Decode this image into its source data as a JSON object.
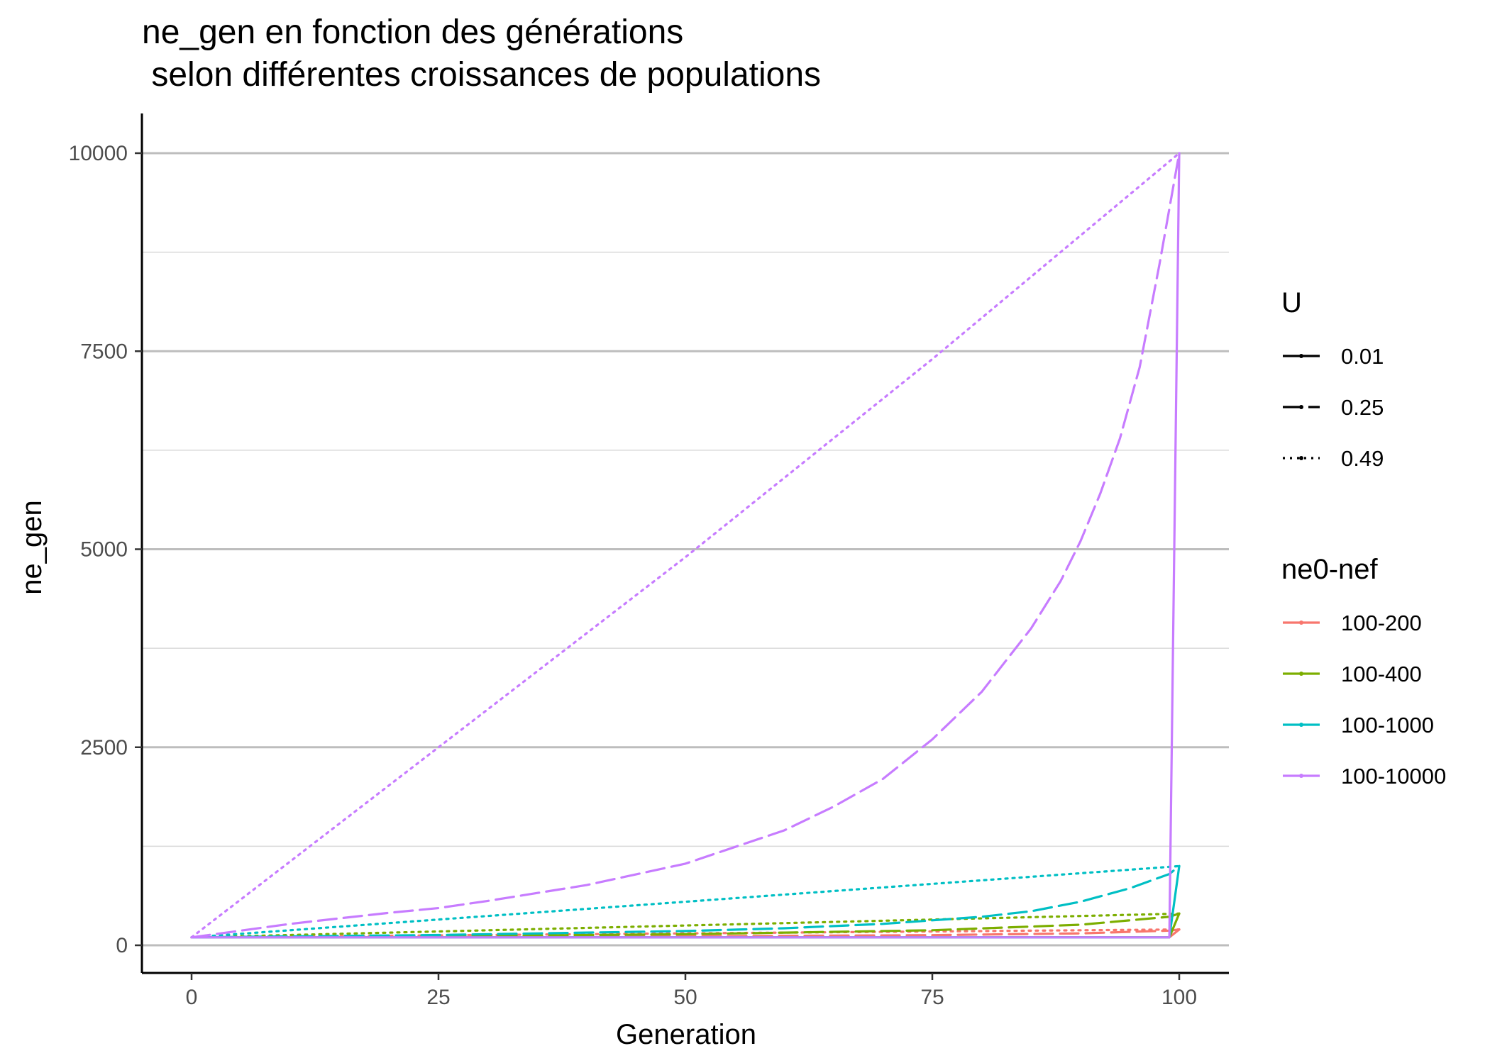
{
  "chart_data": {
    "type": "line",
    "title_line1": "ne_gen en fonction des générations",
    "title_line2": " selon différentes croissances de populations",
    "xlabel": "Generation",
    "ylabel": "ne_gen",
    "xlim": [
      -10,
      105
    ],
    "ylim": [
      -800,
      10450
    ],
    "xticks": [
      0,
      25,
      50,
      75,
      100
    ],
    "yticks": [
      0,
      2500,
      5000,
      7500,
      10000
    ],
    "grid": "major and minor horizontal",
    "legend_position": "right",
    "legend": {
      "U": {
        "title": "U",
        "entries": [
          {
            "label": "0.01",
            "linetype": "solid"
          },
          {
            "label": "0.25",
            "linetype": "dashed"
          },
          {
            "label": "0.49",
            "linetype": "dotted"
          }
        ]
      },
      "nef": {
        "title": "ne0-nef",
        "entries": [
          {
            "label": "100-200",
            "color": "#F8766D"
          },
          {
            "label": "100-400",
            "color": "#7CAE00"
          },
          {
            "label": "100-1000",
            "color": "#00BFC4"
          },
          {
            "label": "100-10000",
            "color": "#C77CFF"
          }
        ]
      }
    },
    "series": [
      {
        "name": "100-200",
        "U": "0.01",
        "color": "#F8766D",
        "dash": "solid",
        "points": [
          [
            0,
            100
          ],
          [
            99,
            100
          ],
          [
            100,
            200
          ]
        ]
      },
      {
        "name": "100-200",
        "U": "0.25",
        "color": "#F8766D",
        "dash": "dashed",
        "points": [
          [
            0,
            100
          ],
          [
            25,
            105
          ],
          [
            50,
            113
          ],
          [
            75,
            128
          ],
          [
            90,
            150
          ],
          [
            99,
            185
          ],
          [
            100,
            200
          ]
        ]
      },
      {
        "name": "100-200",
        "U": "0.49",
        "color": "#F8766D",
        "dash": "dotted",
        "points": [
          [
            0,
            100
          ],
          [
            25,
            125
          ],
          [
            50,
            150
          ],
          [
            75,
            175
          ],
          [
            99,
            199
          ],
          [
            100,
            200
          ]
        ]
      },
      {
        "name": "100-400",
        "U": "0.01",
        "color": "#7CAE00",
        "dash": "solid",
        "points": [
          [
            0,
            100
          ],
          [
            99,
            100
          ],
          [
            100,
            400
          ]
        ]
      },
      {
        "name": "100-400",
        "U": "0.25",
        "color": "#7CAE00",
        "dash": "dashed",
        "points": [
          [
            0,
            100
          ],
          [
            25,
            115
          ],
          [
            50,
            140
          ],
          [
            75,
            190
          ],
          [
            90,
            260
          ],
          [
            99,
            360
          ],
          [
            100,
            400
          ]
        ]
      },
      {
        "name": "100-400",
        "U": "0.49",
        "color": "#7CAE00",
        "dash": "dotted",
        "points": [
          [
            0,
            100
          ],
          [
            25,
            175
          ],
          [
            50,
            250
          ],
          [
            75,
            325
          ],
          [
            99,
            397
          ],
          [
            100,
            400
          ]
        ]
      },
      {
        "name": "100-1000",
        "U": "0.01",
        "color": "#00BFC4",
        "dash": "solid",
        "points": [
          [
            0,
            100
          ],
          [
            99,
            100
          ],
          [
            100,
            1000
          ]
        ]
      },
      {
        "name": "100-1000",
        "U": "0.25",
        "color": "#00BFC4",
        "dash": "dashed",
        "points": [
          [
            0,
            100
          ],
          [
            25,
            130
          ],
          [
            50,
            180
          ],
          [
            60,
            215
          ],
          [
            70,
            270
          ],
          [
            80,
            360
          ],
          [
            85,
            430
          ],
          [
            90,
            550
          ],
          [
            95,
            720
          ],
          [
            99,
            900
          ],
          [
            100,
            1000
          ]
        ]
      },
      {
        "name": "100-1000",
        "U": "0.49",
        "color": "#00BFC4",
        "dash": "dotted",
        "points": [
          [
            0,
            100
          ],
          [
            25,
            325
          ],
          [
            50,
            550
          ],
          [
            75,
            775
          ],
          [
            99,
            990
          ],
          [
            100,
            1000
          ]
        ]
      },
      {
        "name": "100-10000",
        "U": "0.01",
        "color": "#C77CFF",
        "dash": "solid",
        "points": [
          [
            0,
            100
          ],
          [
            99,
            100
          ],
          [
            100,
            10000
          ]
        ]
      },
      {
        "name": "100-10000",
        "U": "0.25",
        "color": "#C77CFF",
        "dash": "dashed",
        "points": [
          [
            0,
            100
          ],
          [
            10,
            270
          ],
          [
            20,
            410
          ],
          [
            25,
            470
          ],
          [
            30,
            560
          ],
          [
            40,
            760
          ],
          [
            50,
            1030
          ],
          [
            60,
            1450
          ],
          [
            65,
            1750
          ],
          [
            70,
            2100
          ],
          [
            75,
            2600
          ],
          [
            80,
            3200
          ],
          [
            85,
            4000
          ],
          [
            88,
            4600
          ],
          [
            90,
            5100
          ],
          [
            92,
            5700
          ],
          [
            94,
            6400
          ],
          [
            96,
            7300
          ],
          [
            98,
            8600
          ],
          [
            99,
            9300
          ],
          [
            100,
            10000
          ]
        ]
      },
      {
        "name": "100-10000",
        "U": "0.49",
        "color": "#C77CFF",
        "dash": "dotted",
        "points": [
          [
            0,
            100
          ],
          [
            25,
            2500
          ],
          [
            50,
            4900
          ],
          [
            75,
            7400
          ],
          [
            100,
            10000
          ]
        ]
      }
    ]
  }
}
